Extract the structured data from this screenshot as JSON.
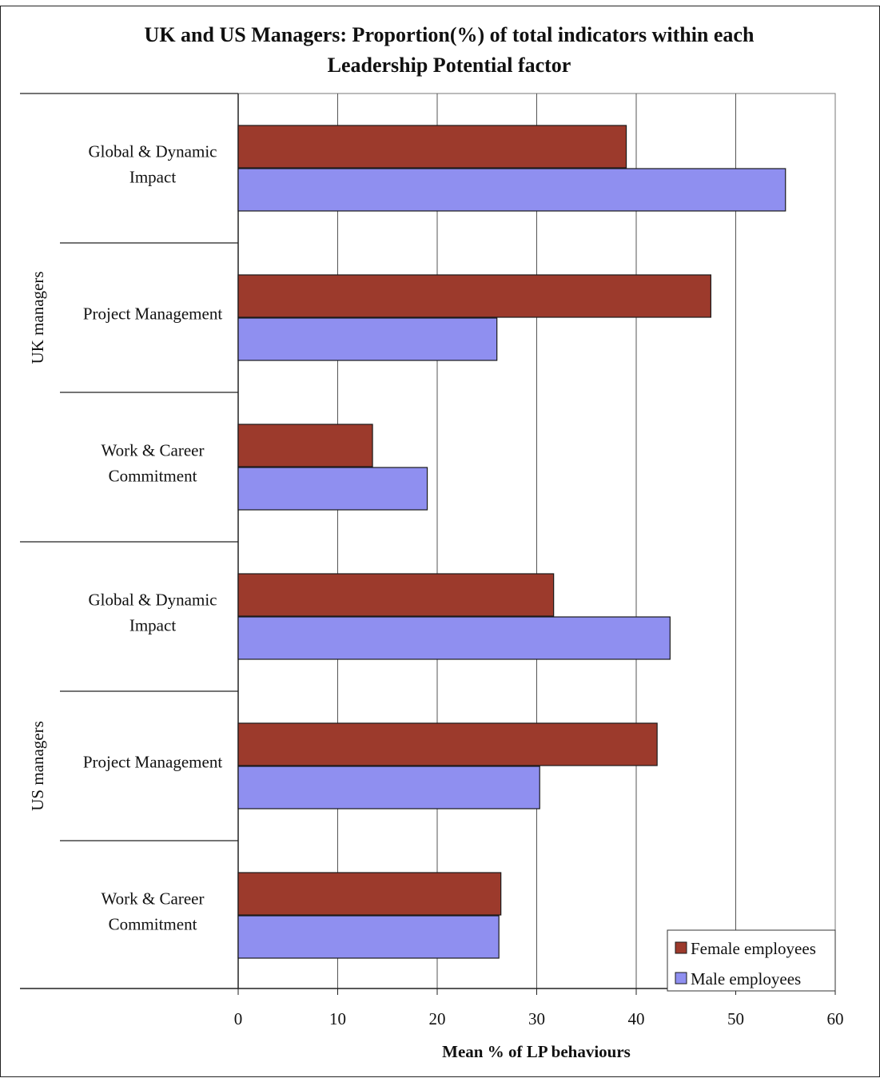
{
  "chart_data": {
    "type": "bar",
    "orientation": "horizontal",
    "title": "UK and US Managers: Proportion(%) of total indicators within each Leadership Potential factor",
    "title_lines": [
      "UK and US Managers: Proportion(%) of total indicators within each",
      "Leadership Potential factor"
    ],
    "xlabel": "Mean %  of LP behaviours",
    "xlim": [
      0,
      60
    ],
    "xticks": [
      0,
      10,
      20,
      30,
      40,
      50,
      60
    ],
    "grid": "vertical",
    "legend_position": "bottom-right",
    "groups": [
      {
        "name": "UK managers",
        "categories": [
          {
            "label_lines": [
              "Global & Dynamic",
              "Impact"
            ],
            "female": 39,
            "male": 55
          },
          {
            "label_lines": [
              "Project Management"
            ],
            "female": 47.5,
            "male": 26
          },
          {
            "label_lines": [
              "Work & Career",
              "Commitment"
            ],
            "female": 13.5,
            "male": 19
          }
        ]
      },
      {
        "name": "US managers",
        "categories": [
          {
            "label_lines": [
              "Global & Dynamic",
              "Impact"
            ],
            "female": 31.7,
            "male": 43.4
          },
          {
            "label_lines": [
              "Project Management"
            ],
            "female": 42.1,
            "male": 30.3
          },
          {
            "label_lines": [
              "Work & Career",
              "Commitment"
            ],
            "female": 26.4,
            "male": 26.2
          }
        ]
      }
    ],
    "series": [
      {
        "key": "female",
        "name": "Female employees",
        "color": "#9c3a2c"
      },
      {
        "key": "male",
        "name": "Male employees",
        "color": "#8f8ff0"
      }
    ]
  }
}
